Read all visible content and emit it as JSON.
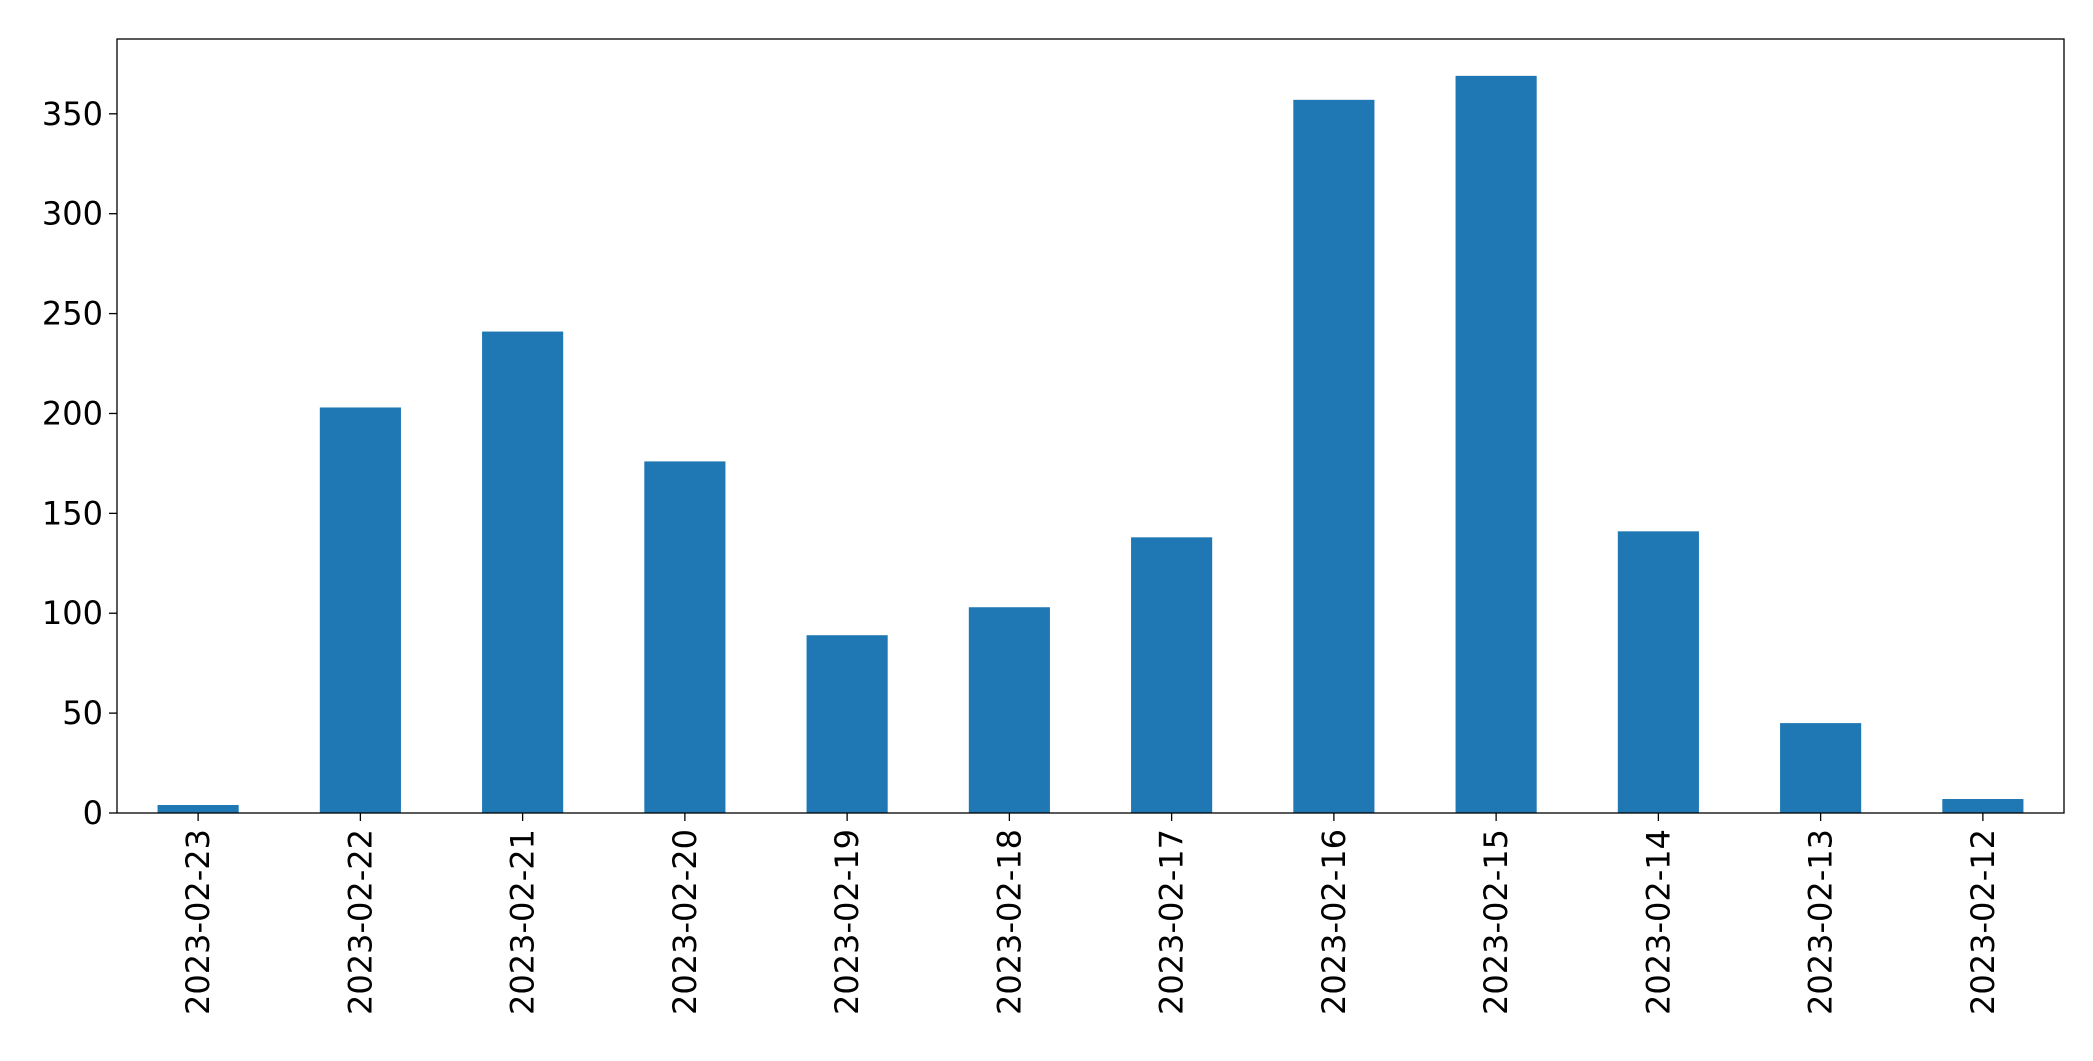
{
  "chart_data": {
    "type": "bar",
    "categories": [
      "2023-02-23",
      "2023-02-22",
      "2023-02-21",
      "2023-02-20",
      "2023-02-19",
      "2023-02-18",
      "2023-02-17",
      "2023-02-16",
      "2023-02-15",
      "2023-02-14",
      "2023-02-13",
      "2023-02-12"
    ],
    "values": [
      4,
      203,
      241,
      176,
      89,
      103,
      138,
      357,
      369,
      141,
      45,
      7
    ],
    "color": "#1f77b4",
    "ylim": [
      0,
      387.45
    ],
    "yticks": [
      0,
      50,
      100,
      150,
      200,
      250,
      300,
      350
    ],
    "grid": false
  }
}
